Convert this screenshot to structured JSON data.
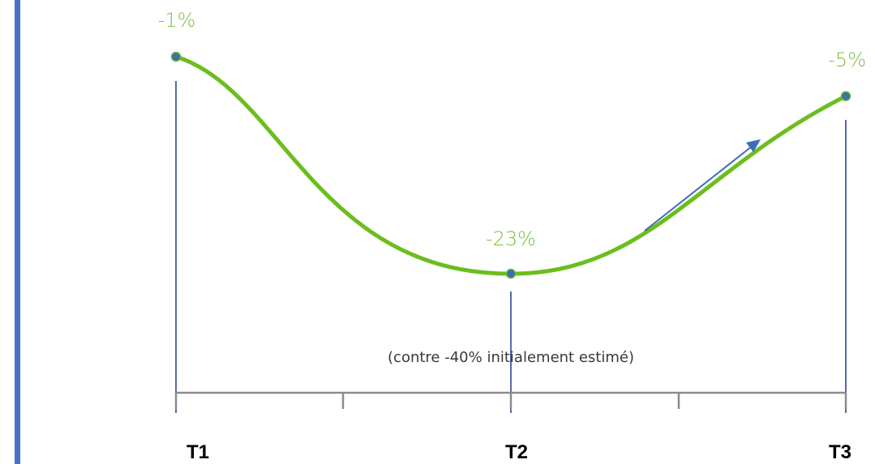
{
  "colors": {
    "accent_bar": "#4a72c4",
    "curve": "#6cbd1e",
    "points": "#3d6db5",
    "value_labels": "#7cc043",
    "guides": "#1f3a8a",
    "axis": "#8c8c8c",
    "arrow": "#3d6db5"
  },
  "chart_data": {
    "type": "line",
    "categories": [
      "T1",
      "T2",
      "T3"
    ],
    "values": [
      -1,
      -23,
      -5
    ],
    "value_labels": [
      "-1%",
      "-23%",
      "-5%"
    ],
    "annotation": "(contre -40% initialement estimé)",
    "trend_arrow": "up",
    "grid": false,
    "legend": "none",
    "title": "",
    "xlabel": "",
    "ylabel": ""
  }
}
